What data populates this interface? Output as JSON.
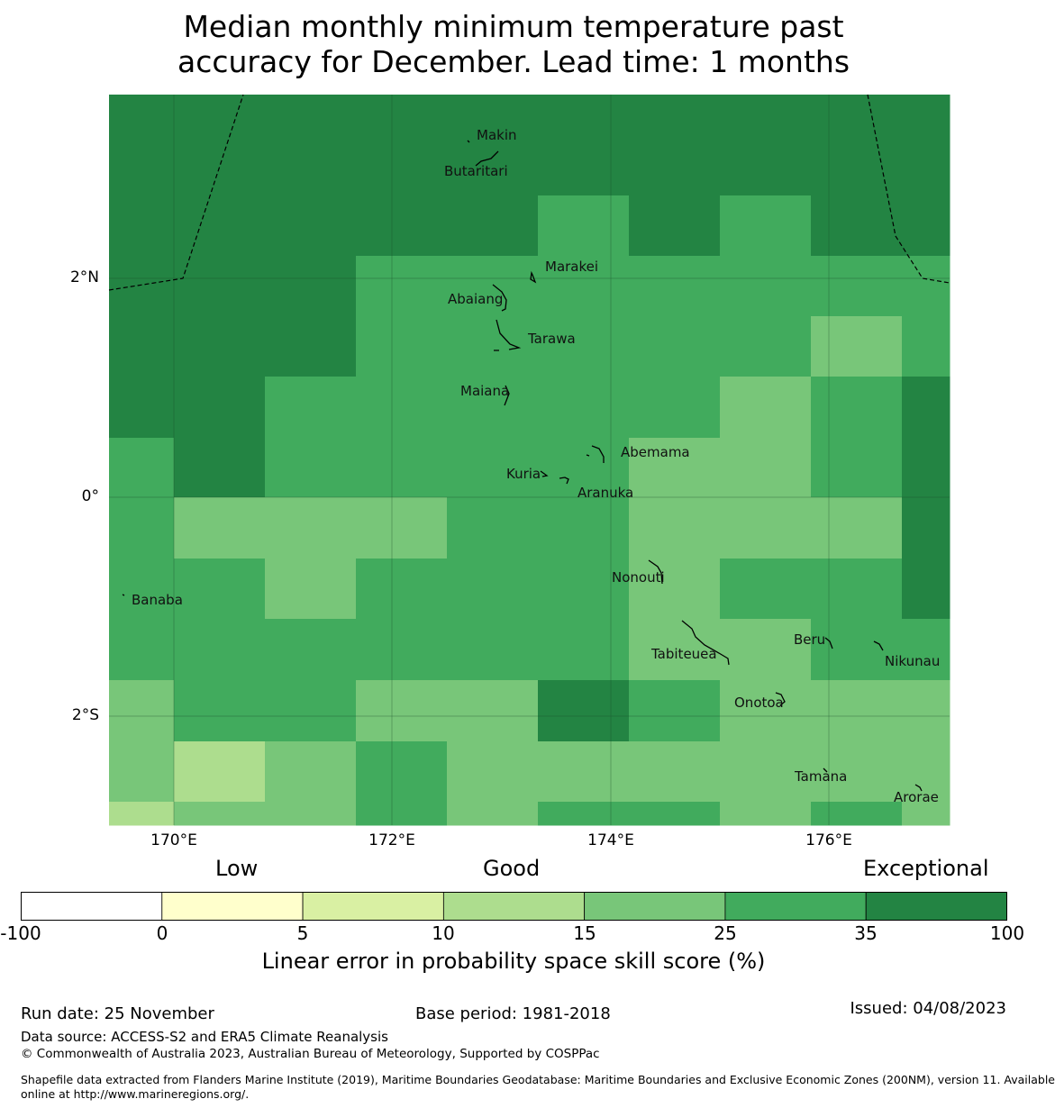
{
  "title_line1": "Median monthly minimum temperature past",
  "title_line2": "accuracy for December. Lead time: 1 months",
  "map": {
    "lat_ticks": [
      "2°N",
      "0°",
      "2°S"
    ],
    "lon_ticks": [
      "170°E",
      "172°E",
      "174°E",
      "176°E"
    ],
    "islands": [
      "Makin",
      "Butaritari",
      "Marakei",
      "Abaiang",
      "Tarawa",
      "Maiana",
      "Abemama",
      "Kuria",
      "Aranuka",
      "Nonouti",
      "Banaba",
      "Tabiteuea",
      "Beru",
      "Nikunau",
      "Onotoa",
      "Tamana",
      "Arorae"
    ],
    "grid_rows": [
      [
        "100",
        "100",
        "100",
        "100",
        "100",
        "100",
        "100",
        "100",
        "100",
        "100"
      ],
      [
        "100",
        "100",
        "100",
        "100",
        "100",
        "35",
        "100",
        "35",
        "100",
        "100"
      ],
      [
        "100",
        "100",
        "100",
        "35",
        "35",
        "35",
        "35",
        "35",
        "35",
        "35"
      ],
      [
        "100",
        "100",
        "100",
        "35",
        "35",
        "35",
        "35",
        "35",
        "25",
        "35"
      ],
      [
        "100",
        "100",
        "35",
        "35",
        "35",
        "35",
        "35",
        "25",
        "35",
        "100"
      ],
      [
        "35",
        "100",
        "35",
        "35",
        "35",
        "35",
        "25",
        "25",
        "35",
        "100"
      ],
      [
        "35",
        "25",
        "25",
        "25",
        "35",
        "35",
        "25",
        "25",
        "25",
        "100"
      ],
      [
        "35",
        "35",
        "25",
        "35",
        "35",
        "35",
        "25",
        "35",
        "35",
        "100"
      ],
      [
        "35",
        "35",
        "35",
        "35",
        "35",
        "35",
        "25",
        "25",
        "35",
        "35"
      ],
      [
        "25",
        "35",
        "35",
        "25",
        "25",
        "100",
        "35",
        "25",
        "25",
        "25"
      ],
      [
        "25",
        "15",
        "25",
        "35",
        "25",
        "25",
        "25",
        "25",
        "25",
        "25"
      ],
      [
        "15",
        "25",
        "25",
        "35",
        "25",
        "35",
        "35",
        "25",
        "35",
        "25"
      ]
    ]
  },
  "legend": {
    "categories": [
      "Low",
      "Good",
      "Exceptional"
    ],
    "ticks": [
      "-100",
      "0",
      "5",
      "10",
      "15",
      "25",
      "35",
      "100"
    ],
    "bins": [
      {
        "color": "#ffffff"
      },
      {
        "color": "#ffffcc"
      },
      {
        "color": "#d9f0a3"
      },
      {
        "color": "#addd8e"
      },
      {
        "color": "#78c679"
      },
      {
        "color": "#41ab5d"
      },
      {
        "color": "#238443"
      }
    ],
    "label": "Linear error in probability space skill score (%)"
  },
  "footer": {
    "run_date": "Run date: 25 November",
    "base_period": "Base period: 1981-2018",
    "issued": "Issued: 04/08/2023",
    "data_source": "Data source: ACCESS-S2 and ERA5 Climate Reanalysis",
    "copyright": "© Commonwealth of Australia 2023, Australian Bureau of Meteorology, Supported by COSPPac",
    "shapefile_line1": "Shapefile data extracted from Flanders Marine Institute (2019), Maritime Boundaries Geodatabase: Maritime Boundaries and Exclusive Economic Zones (200NM), version 11. Available",
    "shapefile_line2": "online at http://www.marineregions.org/."
  }
}
